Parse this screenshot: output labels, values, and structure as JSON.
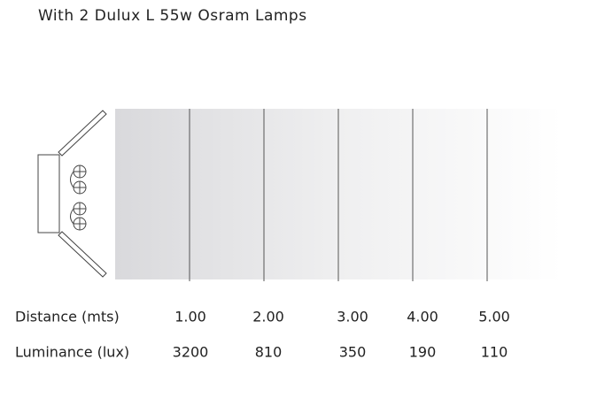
{
  "title": "With 2 Dulux L 55w Osram Lamps",
  "table": {
    "rows": [
      [
        "Distance (mts)",
        "1.00",
        "2.00",
        "3.00",
        "4.00",
        "5.00"
      ],
      [
        "Luminance (lux)",
        "3200",
        "810",
        "350",
        "190",
        "110"
      ]
    ]
  }
}
